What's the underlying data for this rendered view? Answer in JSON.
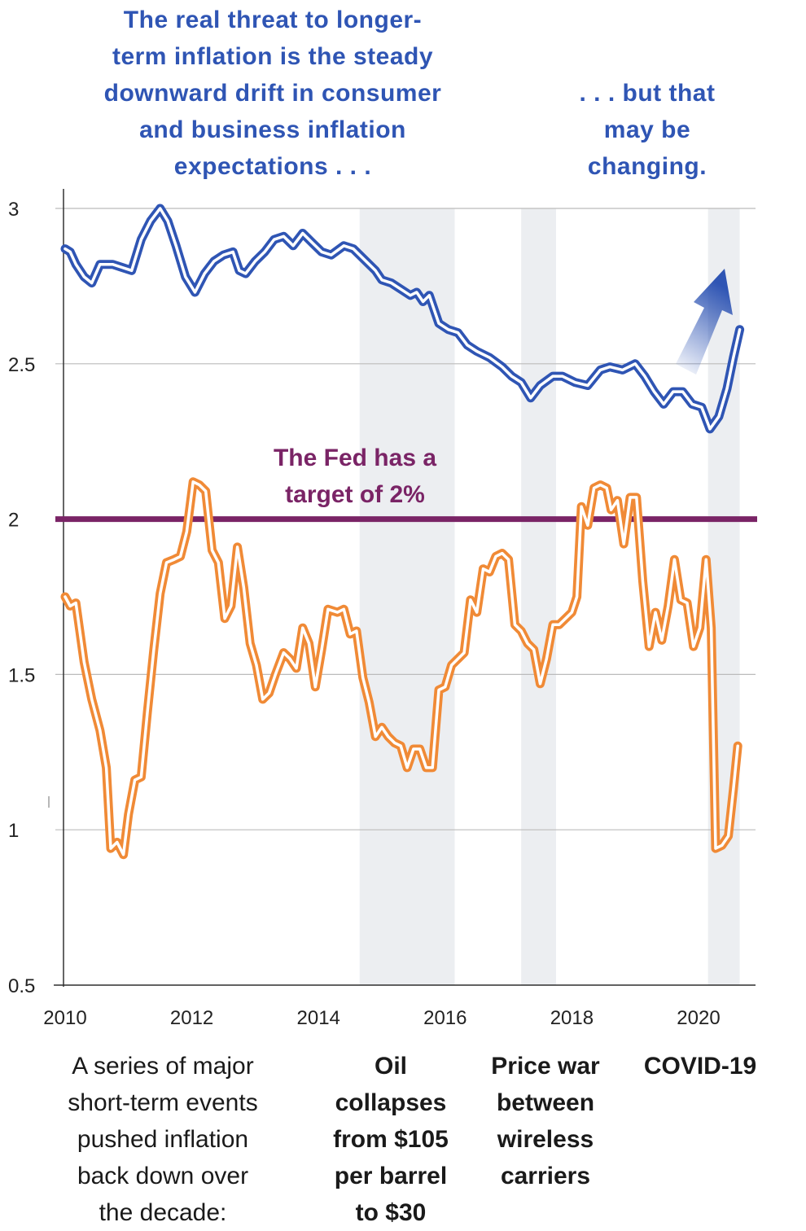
{
  "annotations": {
    "top_left": [
      "The real threat to longer-",
      "term inflation is the steady",
      "downward drift in consumer",
      "and business inflation",
      "expectations . . ."
    ],
    "top_right": [
      ". . . but that",
      "may be",
      "changing."
    ],
    "fed_target": [
      "The Fed has a",
      "target of 2%"
    ],
    "bottom_intro": [
      "A series of major",
      "short-term events",
      "pushed inflation",
      "back down over",
      "the decade:"
    ],
    "events": [
      {
        "lines": [
          "Oil",
          "collapses",
          "from $105",
          "per barrel",
          "to $30"
        ]
      },
      {
        "lines": [
          "Price war",
          "between",
          "wireless",
          "carriers"
        ]
      },
      {
        "lines": [
          "COVID-19"
        ]
      }
    ]
  },
  "colors": {
    "expectations": "#2f55b4",
    "inflation": "#f08a36",
    "fed_line": "#7a2466",
    "shade": "#eceef1",
    "grid": "#bbbbbb"
  },
  "chart_data": {
    "type": "line",
    "x_ticks": [
      "2010",
      "2012",
      "2014",
      "2016",
      "2018",
      "2020"
    ],
    "y_ticks": [
      "0.5",
      "1",
      "1.5",
      "2",
      "2.5",
      "3"
    ],
    "xlim": [
      2010.0,
      2021.0
    ],
    "ylim": [
      0.5,
      3.0
    ],
    "fed_target": 2,
    "shaded_periods": [
      [
        2014.65,
        2016.15
      ],
      [
        2017.2,
        2017.75
      ],
      [
        2020.15,
        2020.65
      ]
    ],
    "series": [
      {
        "key": "expectations",
        "points": [
          [
            2010.0,
            2.87
          ],
          [
            2010.08,
            2.86
          ],
          [
            2010.17,
            2.82
          ],
          [
            2010.3,
            2.78
          ],
          [
            2010.42,
            2.76
          ],
          [
            2010.55,
            2.82
          ],
          [
            2010.75,
            2.82
          ],
          [
            2010.9,
            2.81
          ],
          [
            2011.05,
            2.8
          ],
          [
            2011.2,
            2.9
          ],
          [
            2011.35,
            2.96
          ],
          [
            2011.5,
            3.0
          ],
          [
            2011.62,
            2.96
          ],
          [
            2011.75,
            2.88
          ],
          [
            2011.9,
            2.78
          ],
          [
            2012.05,
            2.73
          ],
          [
            2012.2,
            2.79
          ],
          [
            2012.35,
            2.83
          ],
          [
            2012.5,
            2.85
          ],
          [
            2012.65,
            2.86
          ],
          [
            2012.75,
            2.8
          ],
          [
            2012.85,
            2.79
          ],
          [
            2013.0,
            2.83
          ],
          [
            2013.15,
            2.86
          ],
          [
            2013.3,
            2.9
          ],
          [
            2013.45,
            2.91
          ],
          [
            2013.6,
            2.88
          ],
          [
            2013.75,
            2.92
          ],
          [
            2013.9,
            2.89
          ],
          [
            2014.05,
            2.86
          ],
          [
            2014.2,
            2.85
          ],
          [
            2014.4,
            2.88
          ],
          [
            2014.55,
            2.87
          ],
          [
            2014.7,
            2.84
          ],
          [
            2014.9,
            2.8
          ],
          [
            2015.0,
            2.77
          ],
          [
            2015.15,
            2.76
          ],
          [
            2015.3,
            2.74
          ],
          [
            2015.45,
            2.72
          ],
          [
            2015.55,
            2.73
          ],
          [
            2015.65,
            2.7
          ],
          [
            2015.75,
            2.72
          ],
          [
            2015.9,
            2.63
          ],
          [
            2016.05,
            2.61
          ],
          [
            2016.2,
            2.6
          ],
          [
            2016.35,
            2.56
          ],
          [
            2016.5,
            2.54
          ],
          [
            2016.7,
            2.52
          ],
          [
            2016.9,
            2.49
          ],
          [
            2017.05,
            2.46
          ],
          [
            2017.2,
            2.44
          ],
          [
            2017.35,
            2.39
          ],
          [
            2017.5,
            2.43
          ],
          [
            2017.7,
            2.46
          ],
          [
            2017.85,
            2.46
          ],
          [
            2018.05,
            2.44
          ],
          [
            2018.25,
            2.43
          ],
          [
            2018.45,
            2.48
          ],
          [
            2018.6,
            2.49
          ],
          [
            2018.8,
            2.48
          ],
          [
            2019.0,
            2.5
          ],
          [
            2019.15,
            2.46
          ],
          [
            2019.3,
            2.41
          ],
          [
            2019.45,
            2.37
          ],
          [
            2019.6,
            2.41
          ],
          [
            2019.75,
            2.41
          ],
          [
            2019.9,
            2.37
          ],
          [
            2020.05,
            2.36
          ],
          [
            2020.18,
            2.29
          ],
          [
            2020.32,
            2.33
          ],
          [
            2020.45,
            2.42
          ],
          [
            2020.55,
            2.52
          ],
          [
            2020.65,
            2.61
          ]
        ]
      },
      {
        "key": "inflation",
        "points": [
          [
            2010.0,
            1.75
          ],
          [
            2010.08,
            1.72
          ],
          [
            2010.17,
            1.73
          ],
          [
            2010.3,
            1.54
          ],
          [
            2010.42,
            1.42
          ],
          [
            2010.55,
            1.32
          ],
          [
            2010.65,
            1.2
          ],
          [
            2010.72,
            0.94
          ],
          [
            2010.82,
            0.96
          ],
          [
            2010.92,
            0.92
          ],
          [
            2011.0,
            1.05
          ],
          [
            2011.1,
            1.16
          ],
          [
            2011.2,
            1.17
          ],
          [
            2011.3,
            1.38
          ],
          [
            2011.4,
            1.58
          ],
          [
            2011.5,
            1.76
          ],
          [
            2011.6,
            1.86
          ],
          [
            2011.72,
            1.87
          ],
          [
            2011.82,
            1.88
          ],
          [
            2011.92,
            1.96
          ],
          [
            2012.02,
            2.12
          ],
          [
            2012.12,
            2.11
          ],
          [
            2012.22,
            2.09
          ],
          [
            2012.32,
            1.9
          ],
          [
            2012.42,
            1.86
          ],
          [
            2012.52,
            1.68
          ],
          [
            2012.62,
            1.72
          ],
          [
            2012.72,
            1.91
          ],
          [
            2012.82,
            1.78
          ],
          [
            2012.92,
            1.6
          ],
          [
            2013.02,
            1.53
          ],
          [
            2013.12,
            1.42
          ],
          [
            2013.22,
            1.44
          ],
          [
            2013.32,
            1.5
          ],
          [
            2013.45,
            1.57
          ],
          [
            2013.55,
            1.55
          ],
          [
            2013.65,
            1.52
          ],
          [
            2013.75,
            1.65
          ],
          [
            2013.85,
            1.6
          ],
          [
            2013.95,
            1.46
          ],
          [
            2014.05,
            1.58
          ],
          [
            2014.15,
            1.71
          ],
          [
            2014.3,
            1.7
          ],
          [
            2014.4,
            1.71
          ],
          [
            2014.5,
            1.63
          ],
          [
            2014.6,
            1.64
          ],
          [
            2014.7,
            1.49
          ],
          [
            2014.8,
            1.41
          ],
          [
            2014.9,
            1.3
          ],
          [
            2015.0,
            1.33
          ],
          [
            2015.1,
            1.3
          ],
          [
            2015.2,
            1.28
          ],
          [
            2015.3,
            1.27
          ],
          [
            2015.4,
            1.2
          ],
          [
            2015.5,
            1.26
          ],
          [
            2015.6,
            1.26
          ],
          [
            2015.7,
            1.2
          ],
          [
            2015.8,
            1.2
          ],
          [
            2015.9,
            1.45
          ],
          [
            2016.0,
            1.46
          ],
          [
            2016.1,
            1.53
          ],
          [
            2016.2,
            1.55
          ],
          [
            2016.3,
            1.57
          ],
          [
            2016.4,
            1.74
          ],
          [
            2016.5,
            1.7
          ],
          [
            2016.6,
            1.84
          ],
          [
            2016.7,
            1.83
          ],
          [
            2016.8,
            1.88
          ],
          [
            2016.9,
            1.89
          ],
          [
            2017.0,
            1.87
          ],
          [
            2017.1,
            1.66
          ],
          [
            2017.2,
            1.64
          ],
          [
            2017.3,
            1.6
          ],
          [
            2017.4,
            1.58
          ],
          [
            2017.5,
            1.47
          ],
          [
            2017.6,
            1.55
          ],
          [
            2017.7,
            1.66
          ],
          [
            2017.8,
            1.66
          ],
          [
            2017.9,
            1.68
          ],
          [
            2018.0,
            1.7
          ],
          [
            2018.08,
            1.75
          ],
          [
            2018.15,
            2.04
          ],
          [
            2018.25,
            1.98
          ],
          [
            2018.35,
            2.1
          ],
          [
            2018.45,
            2.11
          ],
          [
            2018.55,
            2.1
          ],
          [
            2018.62,
            2.03
          ],
          [
            2018.72,
            2.06
          ],
          [
            2018.82,
            1.92
          ],
          [
            2018.92,
            2.07
          ],
          [
            2019.02,
            2.07
          ],
          [
            2019.12,
            1.8
          ],
          [
            2019.22,
            1.59
          ],
          [
            2019.32,
            1.7
          ],
          [
            2019.42,
            1.61
          ],
          [
            2019.52,
            1.72
          ],
          [
            2019.62,
            1.87
          ],
          [
            2019.72,
            1.74
          ],
          [
            2019.82,
            1.73
          ],
          [
            2019.92,
            1.59
          ],
          [
            2020.02,
            1.65
          ],
          [
            2020.12,
            1.87
          ],
          [
            2020.2,
            1.65
          ],
          [
            2020.27,
            0.94
          ],
          [
            2020.37,
            0.95
          ],
          [
            2020.47,
            0.98
          ],
          [
            2020.55,
            1.13
          ],
          [
            2020.62,
            1.27
          ]
        ]
      }
    ]
  }
}
